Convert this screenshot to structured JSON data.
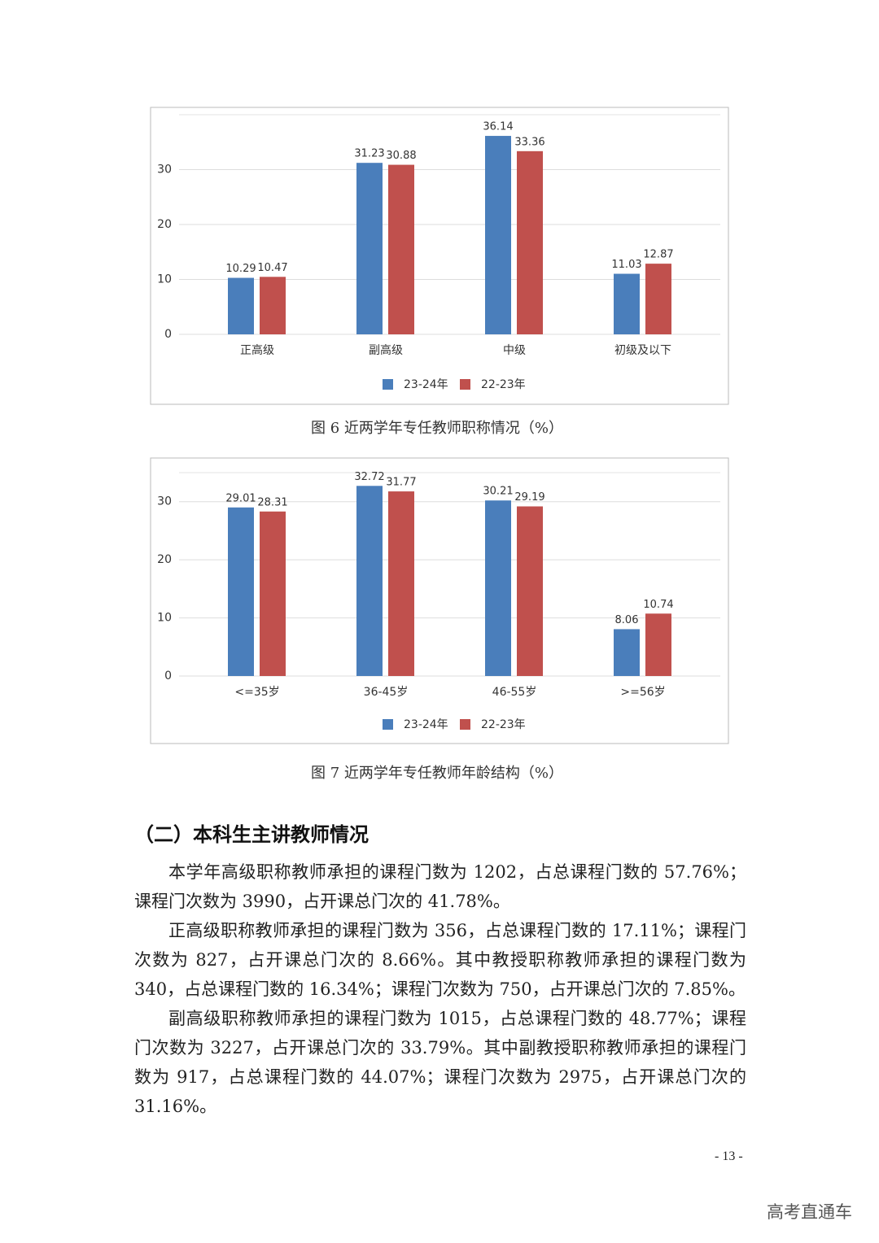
{
  "chart_data": [
    {
      "type": "bar",
      "title": "图 6  近两学年专任教师职称情况（%）",
      "categories": [
        "正高级",
        "副高级",
        "中级",
        "初级及以下"
      ],
      "series": [
        {
          "name": "23-24年",
          "color": "#4a7ebb",
          "values": [
            10.29,
            31.23,
            36.14,
            11.03
          ]
        },
        {
          "name": "22-23年",
          "color": "#c0504d",
          "values": [
            10.47,
            30.88,
            33.36,
            12.87
          ]
        }
      ],
      "ylim": [
        0,
        40
      ],
      "yticks": [
        0,
        10,
        20,
        30
      ],
      "grid": true,
      "legend": "bottom"
    },
    {
      "type": "bar",
      "title": "图 7  近两学年专任教师年龄结构（%）",
      "categories": [
        "<=35岁",
        "36-45岁",
        "46-55岁",
        ">=56岁"
      ],
      "series": [
        {
          "name": "23-24年",
          "color": "#4a7ebb",
          "values": [
            29.01,
            32.72,
            30.21,
            8.06
          ]
        },
        {
          "name": "22-23年",
          "color": "#c0504d",
          "values": [
            28.31,
            31.77,
            29.19,
            10.74
          ]
        }
      ],
      "ylim": [
        0,
        35
      ],
      "yticks": [
        0,
        10,
        20,
        30
      ],
      "grid": true,
      "legend": "bottom"
    }
  ],
  "section": {
    "heading": "（二）本科生主讲教师情况",
    "paragraphs": [
      "本学年高级职称教师承担的课程门数为 1202，占总课程门数的 57.76%；课程门次数为 3990，占开课总门次的 41.78%。",
      "正高级职称教师承担的课程门数为 356，占总课程门数的 17.11%；课程门次数为 827，占开课总门次的 8.66%。其中教授职称教师承担的课程门数为 340，占总课程门数的 16.34%；课程门次数为 750，占开课总门次的 7.85%。",
      "副高级职称教师承担的课程门数为 1015，占总课程门数的 48.77%；课程门次数为 3227，占开课总门次的 33.79%。其中副教授职称教师承担的课程门数为 917，占总课程门数的 44.07%；课程门次数为 2975，占开课总门次的 31.16%。"
    ]
  },
  "page_number": "- 13 -",
  "watermark": "高考直通车"
}
